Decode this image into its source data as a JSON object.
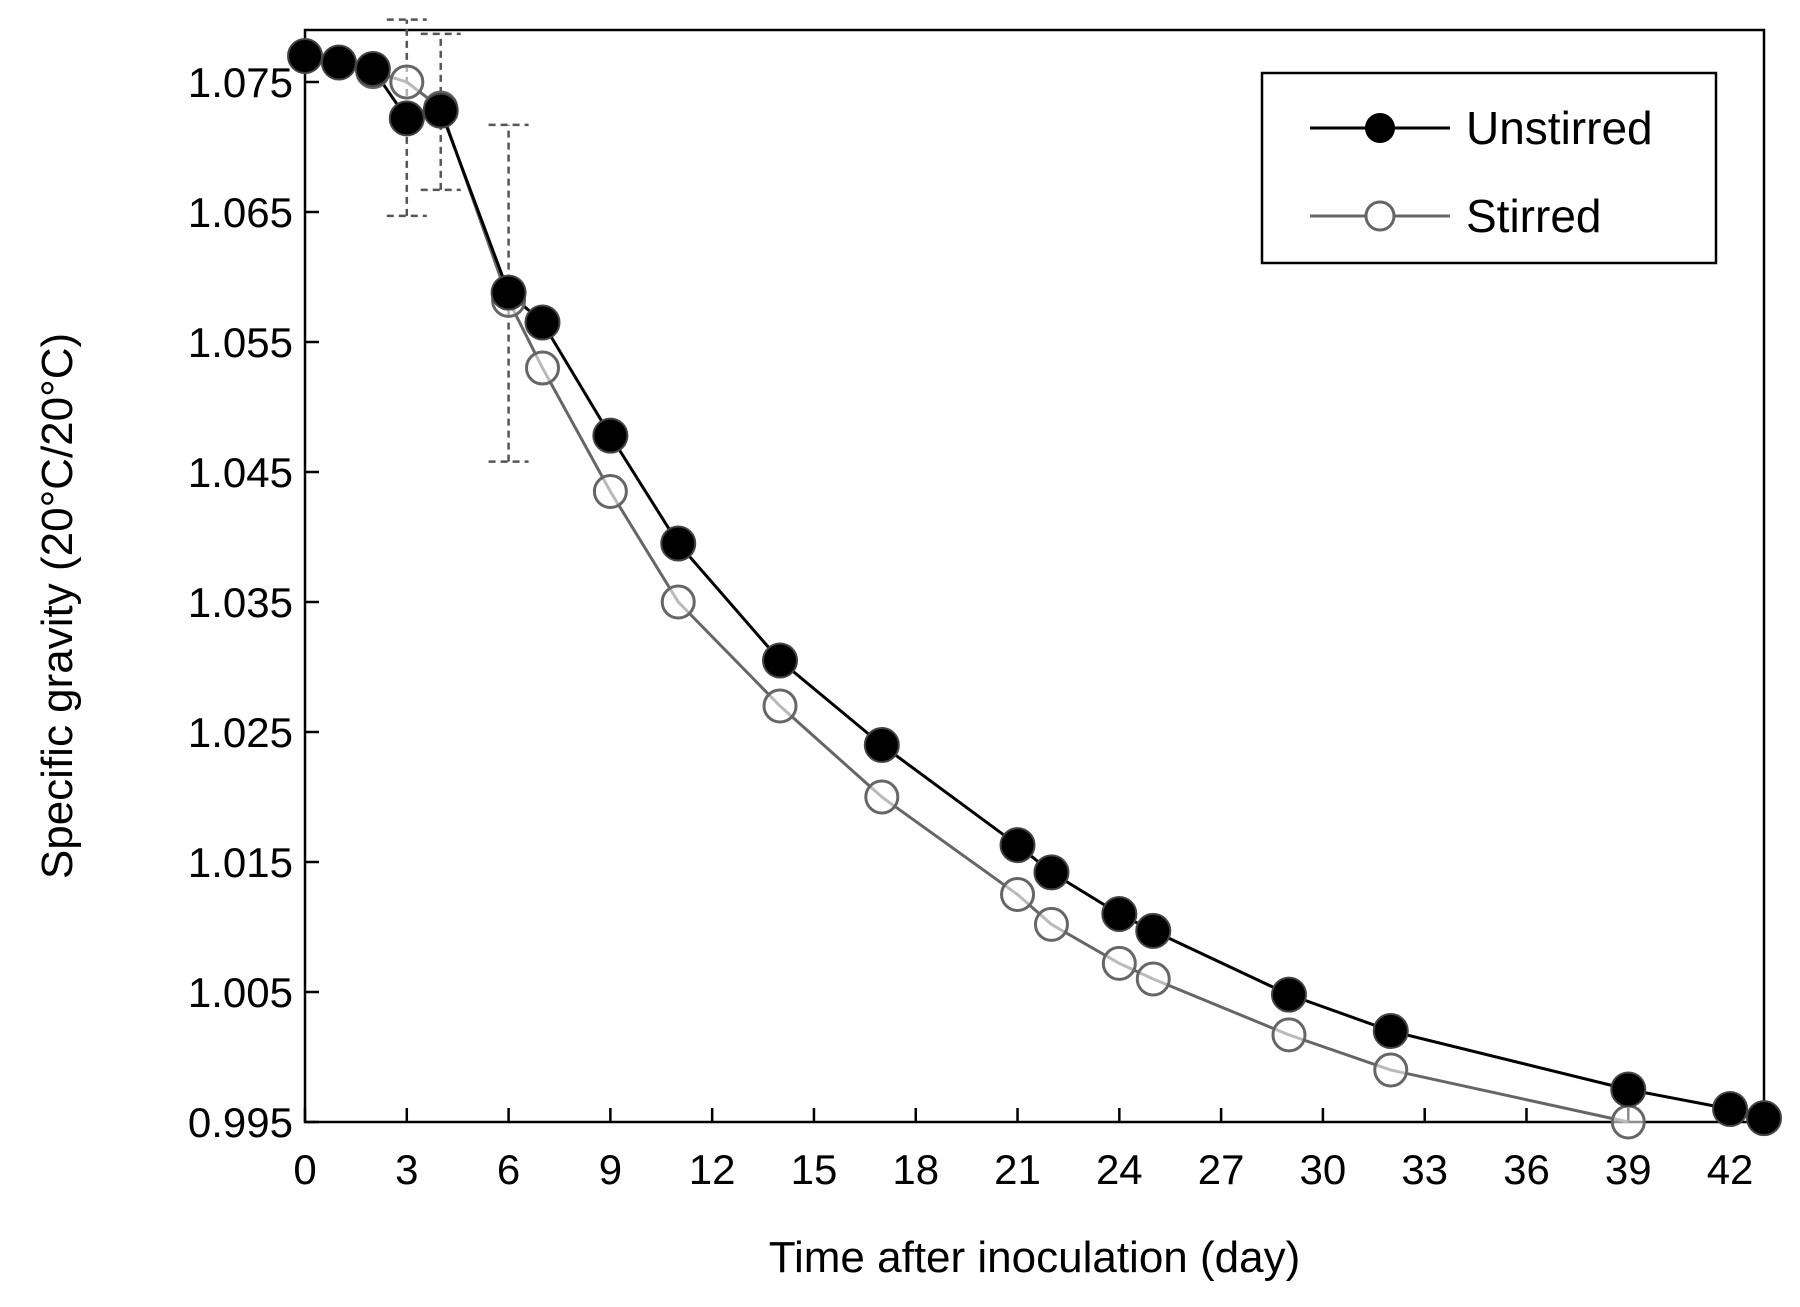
{
  "chart_data": {
    "type": "line",
    "xlabel": "Time after inoculation (day)",
    "ylabel": "Specific gravity (20°C/20°C)",
    "xlim": [
      0,
      43
    ],
    "ylim": [
      0.995,
      1.079
    ],
    "xticks": [
      0,
      3,
      6,
      9,
      12,
      15,
      18,
      21,
      24,
      27,
      30,
      33,
      36,
      39,
      42
    ],
    "xtick_labels": [
      "0",
      "3",
      "6",
      "9",
      "12",
      "15",
      "18",
      "21",
      "24",
      "27",
      "30",
      "33",
      "36",
      "39",
      "42"
    ],
    "yticks": [
      0.995,
      1.005,
      1.015,
      1.025,
      1.035,
      1.045,
      1.055,
      1.065,
      1.075
    ],
    "ytick_labels": [
      "0.995",
      "1.005",
      "1.015",
      "1.025",
      "1.035",
      "1.045",
      "1.055",
      "1.065",
      "1.075"
    ],
    "grid": false,
    "legend_position": "top-right",
    "series": [
      {
        "name": "Unstirred",
        "marker": "filled-circle",
        "color": "#000000",
        "x": [
          0,
          1,
          2,
          3,
          4,
          6,
          7,
          9,
          11,
          14,
          17,
          21,
          22,
          24,
          25,
          29,
          32,
          39,
          42,
          43
        ],
        "y": [
          1.077,
          1.0765,
          1.076,
          1.0722,
          1.0728,
          1.0588,
          1.0565,
          1.0478,
          1.0395,
          1.0305,
          1.024,
          1.0163,
          1.0142,
          1.011,
          1.0097,
          1.0048,
          1.002,
          0.9975,
          0.996,
          0.9953
        ]
      },
      {
        "name": "Stirred",
        "marker": "open-circle",
        "color": "#666666",
        "x": [
          0,
          1,
          2,
          3,
          4,
          6,
          7,
          9,
          11,
          14,
          17,
          21,
          22,
          24,
          25,
          29,
          32,
          39
        ],
        "y": [
          1.077,
          1.0765,
          1.0758,
          1.075,
          1.073,
          1.0582,
          1.053,
          1.0435,
          1.035,
          1.027,
          1.02,
          1.0125,
          1.0102,
          1.0072,
          1.006,
          1.0017,
          0.999,
          0.995
        ]
      }
    ],
    "error_bars": [
      {
        "x": 3,
        "low": 1.0647,
        "high": 1.0798
      },
      {
        "x": 4,
        "low": 1.0667,
        "high": 1.0787
      },
      {
        "x": 6,
        "low": 1.0458,
        "high": 1.0717
      }
    ]
  }
}
